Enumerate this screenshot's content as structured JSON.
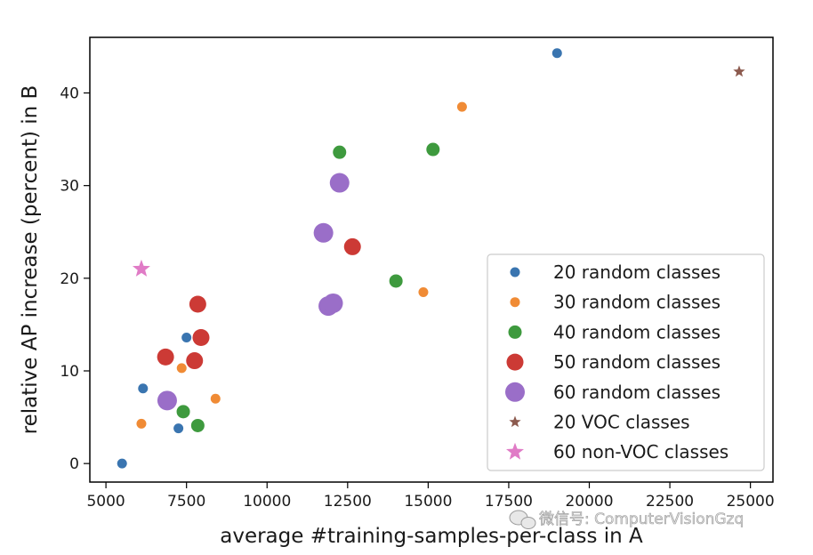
{
  "chart_data": {
    "type": "scatter",
    "title": "",
    "xlabel": "average #training-samples-per-class in A",
    "ylabel": "relative AP increase (percent) in B",
    "xlim": [
      4500,
      25700
    ],
    "ylim": [
      -2,
      46
    ],
    "xticks": [
      5000,
      7500,
      10000,
      12500,
      15000,
      17500,
      20000,
      22500,
      25000
    ],
    "yticks": [
      0,
      10,
      20,
      30,
      40
    ],
    "grid": false,
    "legend_position": "lower-right",
    "series": [
      {
        "name": "20 random classes",
        "marker": "circle",
        "size": "small",
        "color": "#3a75b0",
        "points": [
          [
            5500,
            0
          ],
          [
            6150,
            8.1
          ],
          [
            7250,
            3.8
          ],
          [
            7500,
            13.6
          ],
          [
            19000,
            44.3
          ]
        ]
      },
      {
        "name": "30 random classes",
        "marker": "circle",
        "size": "small",
        "color": "#f08b35",
        "points": [
          [
            6100,
            4.3
          ],
          [
            7350,
            10.3
          ],
          [
            8400,
            7.0
          ],
          [
            14850,
            18.5
          ],
          [
            16050,
            38.5
          ]
        ]
      },
      {
        "name": "40 random classes",
        "marker": "circle",
        "size": "medium",
        "color": "#3e9a3e",
        "points": [
          [
            7400,
            5.6
          ],
          [
            7850,
            4.1
          ],
          [
            12250,
            33.6
          ],
          [
            14000,
            19.7
          ],
          [
            15150,
            33.9
          ]
        ]
      },
      {
        "name": "50 random classes",
        "marker": "circle",
        "size": "large",
        "color": "#cc3a35",
        "points": [
          [
            6850,
            11.5
          ],
          [
            7750,
            11.1
          ],
          [
            7850,
            17.2
          ],
          [
            7950,
            13.6
          ],
          [
            12650,
            23.4
          ]
        ]
      },
      {
        "name": "60 random classes",
        "marker": "circle",
        "size": "xlarge",
        "color": "#9a6ec8",
        "points": [
          [
            6900,
            6.8
          ],
          [
            11750,
            24.9
          ],
          [
            11900,
            17.0
          ],
          [
            12050,
            17.3
          ],
          [
            12250,
            30.3
          ]
        ]
      },
      {
        "name": "20 VOC classes",
        "marker": "star",
        "size": "small",
        "color": "#8c5a4e",
        "points": [
          [
            24650,
            42.3
          ]
        ]
      },
      {
        "name": "60 non-VOC classes",
        "marker": "star",
        "size": "large",
        "color": "#e07bc6",
        "points": [
          [
            6100,
            21.0
          ]
        ]
      }
    ]
  },
  "watermark": {
    "text": "微信号: ComputerVisionGzq",
    "icon": "wechat-icon"
  }
}
